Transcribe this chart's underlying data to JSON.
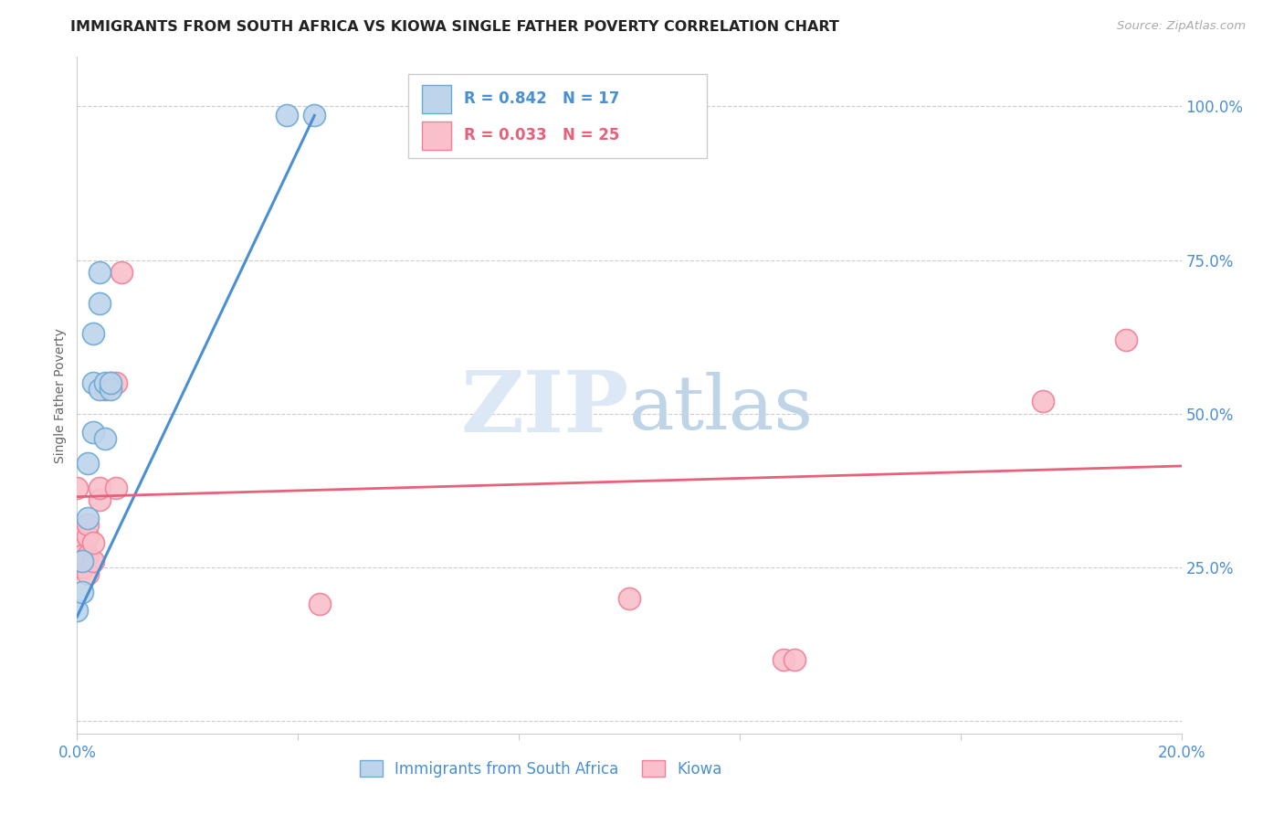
{
  "title": "IMMIGRANTS FROM SOUTH AFRICA VS KIOWA SINGLE FATHER POVERTY CORRELATION CHART",
  "source": "Source: ZipAtlas.com",
  "ylabel": "Single Father Poverty",
  "xmin": 0.0,
  "xmax": 0.2,
  "ymin": -0.02,
  "ymax": 1.08,
  "xticks": [
    0.0,
    0.04,
    0.08,
    0.12,
    0.16,
    0.2
  ],
  "xtick_labels": [
    "0.0%",
    "",
    "",
    "",
    "",
    "20.0%"
  ],
  "yticks": [
    0.0,
    0.25,
    0.5,
    0.75,
    1.0
  ],
  "ytick_labels": [
    "",
    "25.0%",
    "50.0%",
    "75.0%",
    "100.0%"
  ],
  "blue_R": 0.842,
  "blue_N": 17,
  "pink_R": 0.033,
  "pink_N": 25,
  "blue_label": "Immigrants from South Africa",
  "pink_label": "Kiowa",
  "blue_fill_color": "#bed4eb",
  "pink_fill_color": "#f9c0cb",
  "blue_edge_color": "#6aaad4",
  "pink_edge_color": "#f08098",
  "blue_line_color": "#4a8fd4",
  "pink_line_color": "#e8607a",
  "axis_label_color": "#4a8fd4",
  "tick_color": "#4a8fd4",
  "watermark_zip_color": "#dce8f5",
  "watermark_atlas_color": "#c0d4e8",
  "background_color": "#ffffff",
  "grid_color": "#cccccc",
  "blue_scatter_x": [
    0.0,
    0.001,
    0.001,
    0.002,
    0.002,
    0.003,
    0.003,
    0.003,
    0.004,
    0.004,
    0.004,
    0.005,
    0.005,
    0.006,
    0.006,
    0.038,
    0.043
  ],
  "blue_scatter_y": [
    0.18,
    0.21,
    0.26,
    0.33,
    0.42,
    0.47,
    0.55,
    0.63,
    0.54,
    0.68,
    0.73,
    0.55,
    0.46,
    0.54,
    0.55,
    0.985,
    0.985
  ],
  "pink_scatter_x": [
    0.0,
    0.0,
    0.001,
    0.001,
    0.001,
    0.001,
    0.002,
    0.002,
    0.002,
    0.002,
    0.003,
    0.003,
    0.004,
    0.004,
    0.005,
    0.006,
    0.007,
    0.007,
    0.008,
    0.044,
    0.1,
    0.128,
    0.13,
    0.175,
    0.19
  ],
  "pink_scatter_y": [
    0.38,
    0.3,
    0.28,
    0.26,
    0.25,
    0.27,
    0.24,
    0.27,
    0.3,
    0.32,
    0.26,
    0.29,
    0.36,
    0.38,
    0.54,
    0.55,
    0.55,
    0.38,
    0.73,
    0.19,
    0.2,
    0.1,
    0.1,
    0.52,
    0.62
  ],
  "blue_line_x0": 0.0,
  "blue_line_y0": 0.17,
  "blue_line_x1": 0.043,
  "blue_line_y1": 0.985,
  "pink_line_x0": 0.0,
  "pink_line_y0": 0.365,
  "pink_line_x1": 0.2,
  "pink_line_y1": 0.415,
  "title_fontsize": 11.5,
  "source_fontsize": 9.5,
  "axis_fontsize": 10,
  "tick_fontsize": 12,
  "legend_fontsize": 12,
  "ylabel_fontsize": 10
}
